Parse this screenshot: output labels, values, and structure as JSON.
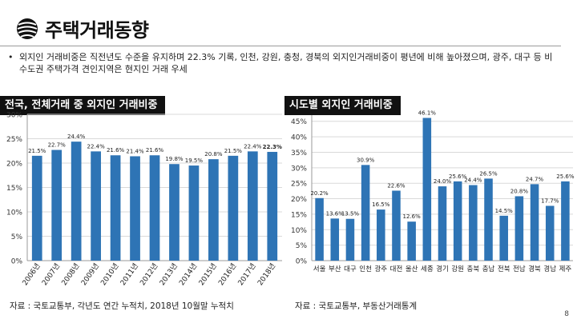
{
  "header": {
    "title": "주택거래동향"
  },
  "bullet_text": "외지인 거래비중은 직전년도 수준을 유지하며 22.3% 기록, 인천, 강원, 충청, 경북의 외지인거래비중이 평년에 비해 높아졌으며, 광주, 대구 등 비수도권 주택가격 견인지역은 현지인 거래 우세",
  "bullet_mark": "•",
  "left_label": "전국, 전체거래 중 외지인 거래비중",
  "right_label": "시도별 외지인 거래비중",
  "left_source": "자료 : 국토교통부, 각년도 연간 누적치, 2018년 10월말 누적치",
  "right_source": "자료 : 국토교통부, 부동산거래통계",
  "page_number": "8",
  "colors": {
    "bar": "#2e74b5",
    "label_bg": "#111111"
  },
  "chart_data": [
    {
      "type": "bar",
      "categories": [
        "2006년",
        "2007년",
        "2008년",
        "2009년",
        "2010년",
        "2011년",
        "2012년",
        "2013년",
        "2014년",
        "2015년",
        "2016년",
        "2017년",
        "2018년"
      ],
      "values": [
        21.5,
        22.7,
        24.4,
        22.4,
        21.6,
        21.4,
        21.6,
        19.8,
        19.5,
        20.8,
        21.5,
        22.4,
        22.3
      ],
      "data_labels": [
        "21.5%",
        "22.7%",
        "24.4%",
        "22.4%",
        "21.6%",
        "21.4%",
        "21.6%",
        "19.8%",
        "19.5%",
        "20.8%",
        "21.5%",
        "22.4%",
        "22.3%"
      ],
      "y_ticks": [
        "0%",
        "5%",
        "10%",
        "15%",
        "20%",
        "25%",
        "30%"
      ],
      "ylim": [
        0,
        30
      ],
      "grid": true
    },
    {
      "type": "bar",
      "categories": [
        "서울",
        "부산",
        "대구",
        "인천",
        "광주",
        "대전",
        "울산",
        "세종",
        "경기",
        "강원",
        "충북",
        "충남",
        "전북",
        "전남",
        "경북",
        "경남",
        "제주"
      ],
      "values": [
        20.2,
        13.6,
        13.5,
        30.9,
        16.5,
        22.6,
        12.6,
        46.1,
        24.0,
        25.6,
        24.4,
        26.5,
        14.5,
        20.8,
        24.7,
        17.7,
        25.6
      ],
      "data_labels": [
        "20.2%",
        "13.6%",
        "13.5%",
        "30.9%",
        "16.5%",
        "22.6%",
        "12.6%",
        "46.1%",
        "24.0%",
        "25.6%",
        "24.4%",
        "26.5%",
        "14.5%",
        "20.8%",
        "24.7%",
        "17.7%",
        "25.6%"
      ],
      "y_ticks": [
        "0%",
        "5%",
        "10%",
        "15%",
        "20%",
        "25%",
        "30%",
        "35%",
        "40%",
        "45%"
      ],
      "ylim": [
        0,
        47
      ],
      "grid": true
    }
  ]
}
